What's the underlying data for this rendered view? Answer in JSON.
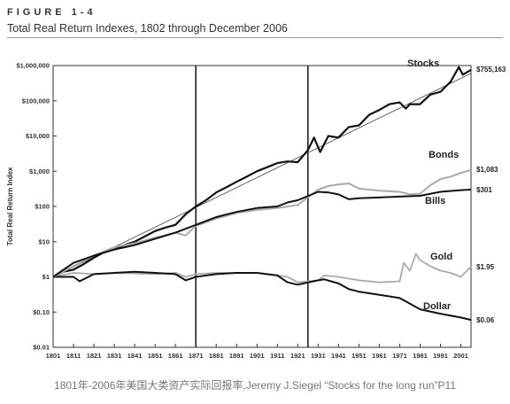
{
  "figure_label": "FIGURE 1-4",
  "caption": "1801年-2006年美国大类资产实际回报率,Jeremy J.Siegel “Stocks for the long run”P11",
  "chart_data": {
    "type": "line",
    "title": "Total Real Return Indexes, 1802 through December 2006",
    "xlabel": "",
    "ylabel": "Total Real Return Index",
    "xlim": [
      1801,
      2006
    ],
    "ylim": [
      0.01,
      1000000
    ],
    "yscale": "log",
    "grid": false,
    "legend": "labels at line ends",
    "x_ticks": [
      1801,
      1811,
      1821,
      1831,
      1841,
      1851,
      1861,
      1871,
      1881,
      1891,
      1901,
      1911,
      1921,
      1931,
      1941,
      1951,
      1961,
      1971,
      1981,
      1991,
      2001
    ],
    "y_ticks": [
      {
        "value": 0.01,
        "label": "$0.01"
      },
      {
        "value": 0.1,
        "label": "$0.10"
      },
      {
        "value": 1,
        "label": "$1"
      },
      {
        "value": 10,
        "label": "$10"
      },
      {
        "value": 100,
        "label": "$100"
      },
      {
        "value": 1000,
        "label": "$1,000"
      },
      {
        "value": 10000,
        "label": "$10,000"
      },
      {
        "value": 100000,
        "label": "$100,000"
      },
      {
        "value": 1000000,
        "label": "$1,000,000"
      }
    ],
    "vertical_lines": [
      1871,
      1926
    ],
    "trend_line": {
      "x": [
        1801,
        2006
      ],
      "y": [
        1,
        600000
      ]
    },
    "series": [
      {
        "name": "Stocks",
        "end_label": "$755,163",
        "color": "#111111",
        "width": 2.2,
        "x": [
          1801,
          1806,
          1811,
          1816,
          1821,
          1826,
          1831,
          1836,
          1841,
          1846,
          1851,
          1856,
          1861,
          1866,
          1871,
          1876,
          1881,
          1886,
          1891,
          1896,
          1901,
          1906,
          1911,
          1916,
          1921,
          1926,
          1929,
          1932,
          1936,
          1941,
          1946,
          1951,
          1956,
          1961,
          1966,
          1971,
          1974,
          1976,
          1981,
          1986,
          1991,
          1996,
          2000,
          2002,
          2006
        ],
        "y": [
          1,
          1.4,
          1.6,
          2.3,
          3.5,
          5,
          6,
          8,
          10,
          14,
          20,
          25,
          30,
          60,
          100,
          150,
          250,
          350,
          500,
          700,
          1000,
          1300,
          1700,
          1900,
          1800,
          4000,
          9000,
          3500,
          10000,
          9000,
          18000,
          20000,
          40000,
          55000,
          80000,
          90000,
          60000,
          80000,
          80000,
          150000,
          180000,
          350000,
          900000,
          550000,
          755163
        ]
      },
      {
        "name": "Bonds",
        "end_label": "$1,083",
        "color": "#aaaaaa",
        "width": 2.0,
        "x": [
          1801,
          1811,
          1821,
          1831,
          1841,
          1851,
          1861,
          1866,
          1871,
          1881,
          1891,
          1901,
          1911,
          1921,
          1931,
          1936,
          1941,
          1946,
          1951,
          1961,
          1971,
          1976,
          1981,
          1986,
          1991,
          1996,
          2001,
          2006
        ],
        "y": [
          1,
          2,
          4,
          7,
          9,
          13,
          18,
          15,
          28,
          45,
          65,
          80,
          90,
          110,
          300,
          380,
          420,
          450,
          320,
          280,
          260,
          220,
          230,
          400,
          600,
          700,
          900,
          1083
        ]
      },
      {
        "name": "Bills",
        "end_label": "$301",
        "color": "#111111",
        "width": 2.0,
        "x": [
          1801,
          1811,
          1821,
          1831,
          1841,
          1851,
          1861,
          1871,
          1881,
          1891,
          1901,
          1911,
          1916,
          1921,
          1931,
          1936,
          1941,
          1946,
          1951,
          1961,
          1971,
          1981,
          1991,
          2001,
          2006
        ],
        "y": [
          1,
          2.5,
          4,
          6,
          8,
          12,
          18,
          30,
          50,
          70,
          90,
          100,
          130,
          150,
          260,
          250,
          220,
          160,
          170,
          180,
          190,
          200,
          260,
          290,
          301
        ]
      },
      {
        "name": "Gold",
        "end_label": "$1.95",
        "color": "#aaaaaa",
        "width": 1.8,
        "x": [
          1801,
          1811,
          1821,
          1831,
          1841,
          1851,
          1861,
          1866,
          1871,
          1881,
          1891,
          1901,
          1911,
          1916,
          1921,
          1931,
          1934,
          1941,
          1951,
          1961,
          1971,
          1973,
          1976,
          1979,
          1981,
          1986,
          1991,
          1996,
          2001,
          2006
        ],
        "y": [
          1,
          1.3,
          1.2,
          1.3,
          1.25,
          1.2,
          1.3,
          1.0,
          1.2,
          1.3,
          1.3,
          1.3,
          1.1,
          1.0,
          0.7,
          0.8,
          1.1,
          1.0,
          0.8,
          0.7,
          0.75,
          2.5,
          1.5,
          4.5,
          3,
          2,
          1.5,
          1.3,
          1.0,
          1.95
        ]
      },
      {
        "name": "Dollar",
        "end_label": "$0.06",
        "color": "#111111",
        "width": 2.0,
        "x": [
          1801,
          1811,
          1814,
          1821,
          1831,
          1841,
          1851,
          1861,
          1866,
          1871,
          1881,
          1891,
          1901,
          1911,
          1916,
          1921,
          1931,
          1934,
          1941,
          1946,
          1951,
          1961,
          1971,
          1981,
          1991,
          2001,
          2006
        ],
        "y": [
          1,
          1.0,
          0.75,
          1.2,
          1.3,
          1.4,
          1.3,
          1.2,
          0.8,
          1.0,
          1.2,
          1.3,
          1.3,
          1.1,
          0.7,
          0.6,
          0.8,
          0.85,
          0.65,
          0.45,
          0.38,
          0.31,
          0.25,
          0.12,
          0.09,
          0.07,
          0.06
        ]
      }
    ]
  }
}
